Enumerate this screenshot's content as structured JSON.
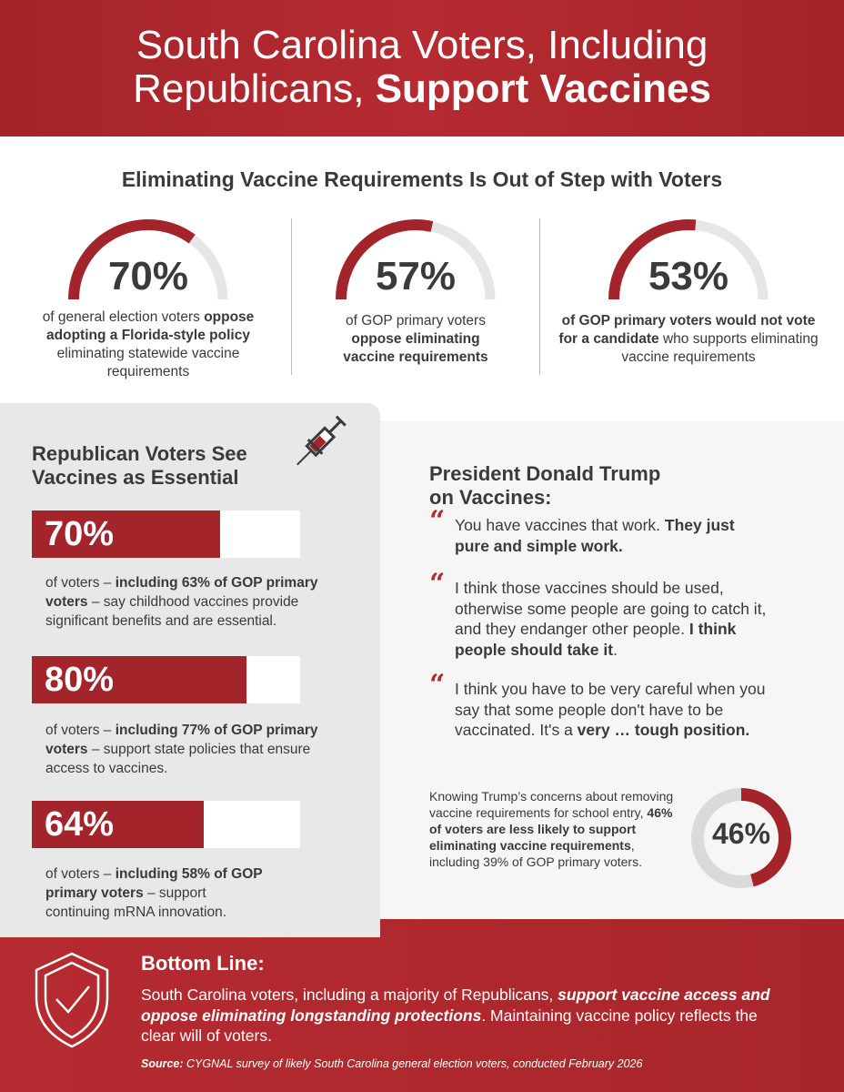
{
  "header": {
    "title_line1": "South Carolina Voters, Including",
    "title_line2_plain": "Republicans, ",
    "title_line2_bold": "Support Vaccines"
  },
  "section1": {
    "title": "Eliminating Vaccine Requirements Is Out of Step with Voters",
    "gauges": [
      {
        "value": 70,
        "label": "70%",
        "pre": "of general election voters ",
        "bold": "oppose adopting a Florida-style policy",
        "post": " eliminating statewide vaccine requirements"
      },
      {
        "value": 57,
        "label": "57%",
        "pre": "of GOP primary voters ",
        "bold": "oppose eliminating vaccine requirements",
        "post": ""
      },
      {
        "value": 53,
        "label": "53%",
        "pre": "",
        "bold": "of GOP primary voters would not vote for a candidate",
        "post": " who supports eliminating vaccine requirements"
      }
    ]
  },
  "left": {
    "title_line1": "Republican Voters See",
    "title_line2": "Vaccines as Essential",
    "bars": [
      {
        "value": 70,
        "label": "70%",
        "pre": "of voters – ",
        "bold": "including 63% of GOP primary voters",
        "post": " – say childhood vaccines provide significant benefits and are essential."
      },
      {
        "value": 80,
        "label": "80%",
        "pre": "of voters – ",
        "bold": "including 77% of GOP primary voters",
        "post": " – support state policies that ensure access to vaccines."
      },
      {
        "value": 64,
        "label": "64%",
        "pre": "of voters – ",
        "bold": "including 58% of GOP primary voters",
        "post": " – support continuing mRNA innovation."
      }
    ]
  },
  "right": {
    "title_line1": "President Donald Trump",
    "title_line2": "on Vaccines:",
    "quote_mark": "“",
    "quotes": [
      {
        "plain": "You have vaccines that work. ",
        "bold": "They just pure and simple work.",
        "tail": ""
      },
      {
        "plain": "I think those vaccines should be used, otherwise some people are going to catch it, and they endanger other people. ",
        "bold": "I think people should take it",
        "tail": "."
      },
      {
        "plain": "I think you have to be very careful when you say that some people don't have to be vaccinated. It's a ",
        "bold": "very … tough position.",
        "tail": ""
      }
    ],
    "knowing": {
      "pre": "Knowing Trump’s concerns about removing vaccine requirements for school entry, ",
      "bold": "46% of voters are less likely to support eliminating vaccine requirements",
      "post": ", including 39% of GOP primary voters.",
      "value": 46,
      "label": "46%"
    }
  },
  "bottom": {
    "title": "Bottom Line:",
    "pre": "South Carolina voters, including a majority of Republicans, ",
    "bold": "support vaccine access and oppose eliminating longstanding protections",
    "post": ". Maintaining vaccine policy reflects the clear will of voters.",
    "source_label": "Source:",
    "source_text": " CYGNAL survey of likely South Carolina general election voters, conducted February 2026"
  },
  "colors": {
    "red": "#a3242a",
    "gray": "#e6e6e6"
  }
}
